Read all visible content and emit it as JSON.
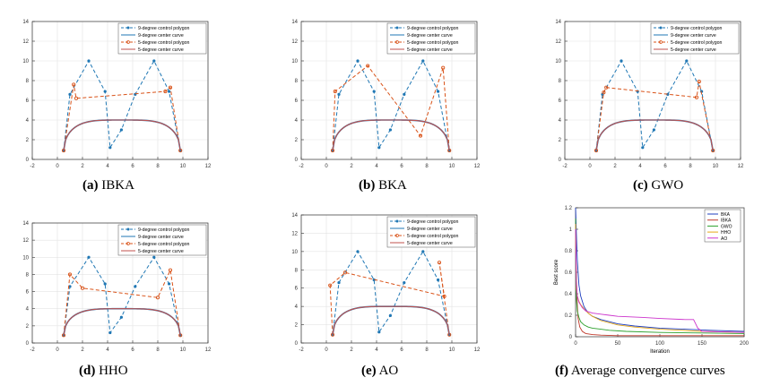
{
  "colors": {
    "cp9": "#1f77b4",
    "center9": "#1f77b4",
    "cp5": "#d95319",
    "center5": "#c0504d",
    "grid": "#e3e3e3",
    "axis": "#333333"
  },
  "legend": {
    "cp9": "9-degree control polygon",
    "c9": "9-degree center curve",
    "cp5": "5-degree control polygon",
    "c5": "5-degree center curve"
  },
  "captions": [
    {
      "label": "(a)",
      "text": " IBKA"
    },
    {
      "label": "(b)",
      "text": " BKA"
    },
    {
      "label": "(c)",
      "text": " GWO"
    },
    {
      "label": "(d)",
      "text": " HHO"
    },
    {
      "label": "(e)",
      "text": " AO"
    },
    {
      "label": "(f)",
      "text": " Average convergence curves"
    }
  ],
  "chart_data": [
    {
      "type": "line",
      "panel": "a",
      "xlim": [
        -2,
        12
      ],
      "ylim": [
        0,
        14
      ],
      "xticks": [
        -2,
        0,
        2,
        4,
        6,
        8,
        10,
        12
      ],
      "yticks": [
        0,
        2,
        4,
        6,
        8,
        10,
        12,
        14
      ],
      "grid": true,
      "legend_position": "top-right",
      "series": [
        {
          "key": "cp9",
          "x": [
            0.5,
            1.0,
            2.5,
            3.8,
            4.2,
            5.1,
            6.2,
            7.7,
            8.9,
            9.8
          ],
          "y": [
            0.9,
            6.6,
            10.0,
            6.9,
            1.2,
            3.0,
            6.6,
            10.0,
            6.9,
            0.9
          ]
        },
        {
          "key": "cp5",
          "x": [
            0.5,
            1.3,
            1.5,
            8.6,
            9.0,
            9.8
          ],
          "y": [
            0.9,
            7.6,
            6.2,
            6.9,
            7.3,
            0.9
          ]
        },
        {
          "key": "c9",
          "x": [
            0.5,
            9.8
          ],
          "peak": 4.0
        },
        {
          "key": "c5",
          "x": [
            0.5,
            9.8
          ],
          "peak": 4.0
        }
      ]
    },
    {
      "type": "line",
      "panel": "b",
      "xlim": [
        -2,
        12
      ],
      "ylim": [
        0,
        14
      ],
      "xticks": [
        -2,
        0,
        2,
        4,
        6,
        8,
        10,
        12
      ],
      "yticks": [
        0,
        2,
        4,
        6,
        8,
        10,
        12,
        14
      ],
      "grid": true,
      "legend_position": "top-right",
      "series": [
        {
          "key": "cp9",
          "x": [
            0.5,
            1.0,
            2.5,
            3.8,
            4.2,
            5.1,
            6.2,
            7.7,
            8.9,
            9.8
          ],
          "y": [
            0.9,
            6.6,
            10.0,
            6.9,
            1.2,
            3.0,
            6.6,
            10.0,
            6.9,
            0.9
          ]
        },
        {
          "key": "cp5",
          "x": [
            0.5,
            0.7,
            3.3,
            7.5,
            9.3,
            9.8
          ],
          "y": [
            0.9,
            6.9,
            9.5,
            2.4,
            9.3,
            0.9
          ]
        },
        {
          "key": "c9",
          "x": [
            0.5,
            9.8
          ],
          "peak": 4.0
        },
        {
          "key": "c5",
          "x": [
            0.5,
            9.8
          ],
          "peak": 4.0
        }
      ]
    },
    {
      "type": "line",
      "panel": "c",
      "xlim": [
        -2,
        12
      ],
      "ylim": [
        0,
        14
      ],
      "xticks": [
        -2,
        0,
        2,
        4,
        6,
        8,
        10,
        12
      ],
      "yticks": [
        0,
        2,
        4,
        6,
        8,
        10,
        12,
        14
      ],
      "grid": true,
      "legend_position": "top-right",
      "series": [
        {
          "key": "cp9",
          "x": [
            0.5,
            1.0,
            2.5,
            3.8,
            4.2,
            5.1,
            6.2,
            7.7,
            8.9,
            9.8
          ],
          "y": [
            0.9,
            6.6,
            10.0,
            6.9,
            1.2,
            3.0,
            6.6,
            10.0,
            6.9,
            0.9
          ]
        },
        {
          "key": "cp5",
          "x": [
            0.5,
            1.1,
            1.3,
            8.5,
            8.7,
            9.8
          ],
          "y": [
            0.9,
            6.8,
            7.3,
            6.3,
            7.9,
            0.9
          ]
        },
        {
          "key": "c9",
          "x": [
            0.5,
            9.8
          ],
          "peak": 4.0
        },
        {
          "key": "c5",
          "x": [
            0.5,
            9.8
          ],
          "peak": 4.0
        }
      ]
    },
    {
      "type": "line",
      "panel": "d",
      "xlim": [
        -2,
        12
      ],
      "ylim": [
        0,
        14
      ],
      "xticks": [
        -2,
        0,
        2,
        4,
        6,
        8,
        10,
        12
      ],
      "yticks": [
        0,
        2,
        4,
        6,
        8,
        10,
        12,
        14
      ],
      "grid": true,
      "legend_position": "top-right",
      "series": [
        {
          "key": "cp9",
          "x": [
            0.5,
            1.0,
            2.5,
            3.8,
            4.2,
            5.1,
            6.2,
            7.7,
            8.9,
            9.8
          ],
          "y": [
            0.9,
            6.6,
            10.0,
            6.9,
            1.2,
            3.0,
            6.6,
            10.0,
            6.9,
            0.9
          ]
        },
        {
          "key": "cp5",
          "x": [
            0.5,
            1.0,
            2.0,
            8.0,
            9.0,
            9.8
          ],
          "y": [
            0.9,
            8.0,
            6.4,
            5.3,
            8.5,
            0.9
          ]
        },
        {
          "key": "c9",
          "x": [
            0.5,
            9.8
          ],
          "peak": 4.0
        },
        {
          "key": "c5",
          "x": [
            0.5,
            9.8
          ],
          "peak": 4.0
        }
      ]
    },
    {
      "type": "line",
      "panel": "e",
      "xlim": [
        -2,
        12
      ],
      "ylim": [
        0,
        14
      ],
      "xticks": [
        -2,
        0,
        2,
        4,
        6,
        8,
        10,
        12
      ],
      "yticks": [
        0,
        2,
        4,
        6,
        8,
        10,
        12,
        14
      ],
      "grid": true,
      "legend_position": "top-right",
      "series": [
        {
          "key": "cp9",
          "x": [
            0.5,
            1.0,
            2.5,
            3.8,
            4.2,
            5.1,
            6.2,
            7.7,
            8.9,
            9.8
          ],
          "y": [
            0.9,
            6.6,
            10.0,
            6.9,
            1.2,
            3.0,
            6.6,
            10.0,
            6.9,
            0.9
          ]
        },
        {
          "key": "cp5",
          "x": [
            0.5,
            0.3,
            1.5,
            9.4,
            9.0,
            9.8
          ],
          "y": [
            0.9,
            6.3,
            7.7,
            5.1,
            8.8,
            0.9
          ]
        },
        {
          "key": "c9",
          "x": [
            0.5,
            9.8
          ],
          "peak": 4.0
        },
        {
          "key": "c5",
          "x": [
            0.5,
            9.8
          ],
          "peak": 4.0
        }
      ]
    },
    {
      "type": "line",
      "panel": "f",
      "xlabel": "Iteration",
      "ylabel": "Best score",
      "xlim": [
        0,
        200
      ],
      "ylim": [
        0,
        1.2
      ],
      "xticks": [
        0,
        50,
        100,
        150,
        200
      ],
      "yticks": [
        0,
        0.2,
        0.4,
        0.6,
        0.8,
        1,
        1.2
      ],
      "grid": false,
      "legend_position": "top-right",
      "series": [
        {
          "name": "BKA",
          "color": "#1f3fbf",
          "x": [
            0,
            1,
            2,
            4,
            6,
            10,
            15,
            20,
            30,
            40,
            50,
            70,
            100,
            130,
            160,
            200
          ],
          "y": [
            1.2,
            0.95,
            0.72,
            0.48,
            0.38,
            0.28,
            0.22,
            0.19,
            0.16,
            0.14,
            0.12,
            0.1,
            0.08,
            0.07,
            0.06,
            0.05
          ]
        },
        {
          "name": "IBKA",
          "color": "#c0392b",
          "x": [
            0,
            1,
            2,
            3,
            5,
            8,
            12,
            20,
            30,
            50,
            100,
            200
          ],
          "y": [
            0.95,
            0.55,
            0.3,
            0.17,
            0.09,
            0.05,
            0.03,
            0.02,
            0.015,
            0.01,
            0.01,
            0.01
          ]
        },
        {
          "name": "GWO",
          "color": "#2ca02c",
          "x": [
            0,
            1,
            2,
            4,
            6,
            10,
            15,
            20,
            30,
            40,
            60,
            100,
            150,
            200
          ],
          "y": [
            1.1,
            0.35,
            0.24,
            0.18,
            0.14,
            0.11,
            0.09,
            0.08,
            0.07,
            0.06,
            0.05,
            0.04,
            0.035,
            0.03
          ]
        },
        {
          "name": "HHO",
          "color": "#e6a817",
          "x": [
            0,
            1,
            2,
            4,
            6,
            10,
            15,
            20,
            30,
            50,
            70,
            100,
            150,
            200
          ],
          "y": [
            1.05,
            0.45,
            0.38,
            0.33,
            0.3,
            0.26,
            0.22,
            0.19,
            0.15,
            0.11,
            0.09,
            0.07,
            0.05,
            0.04
          ]
        },
        {
          "name": "AO",
          "color": "#cc33cc",
          "x": [
            0,
            1,
            2,
            4,
            8,
            12,
            20,
            30,
            40,
            50,
            80,
            100,
            130,
            140,
            145,
            150,
            200
          ],
          "y": [
            1.0,
            0.5,
            0.38,
            0.32,
            0.27,
            0.24,
            0.22,
            0.21,
            0.2,
            0.19,
            0.18,
            0.17,
            0.16,
            0.16,
            0.08,
            0.05,
            0.04
          ]
        }
      ]
    }
  ]
}
